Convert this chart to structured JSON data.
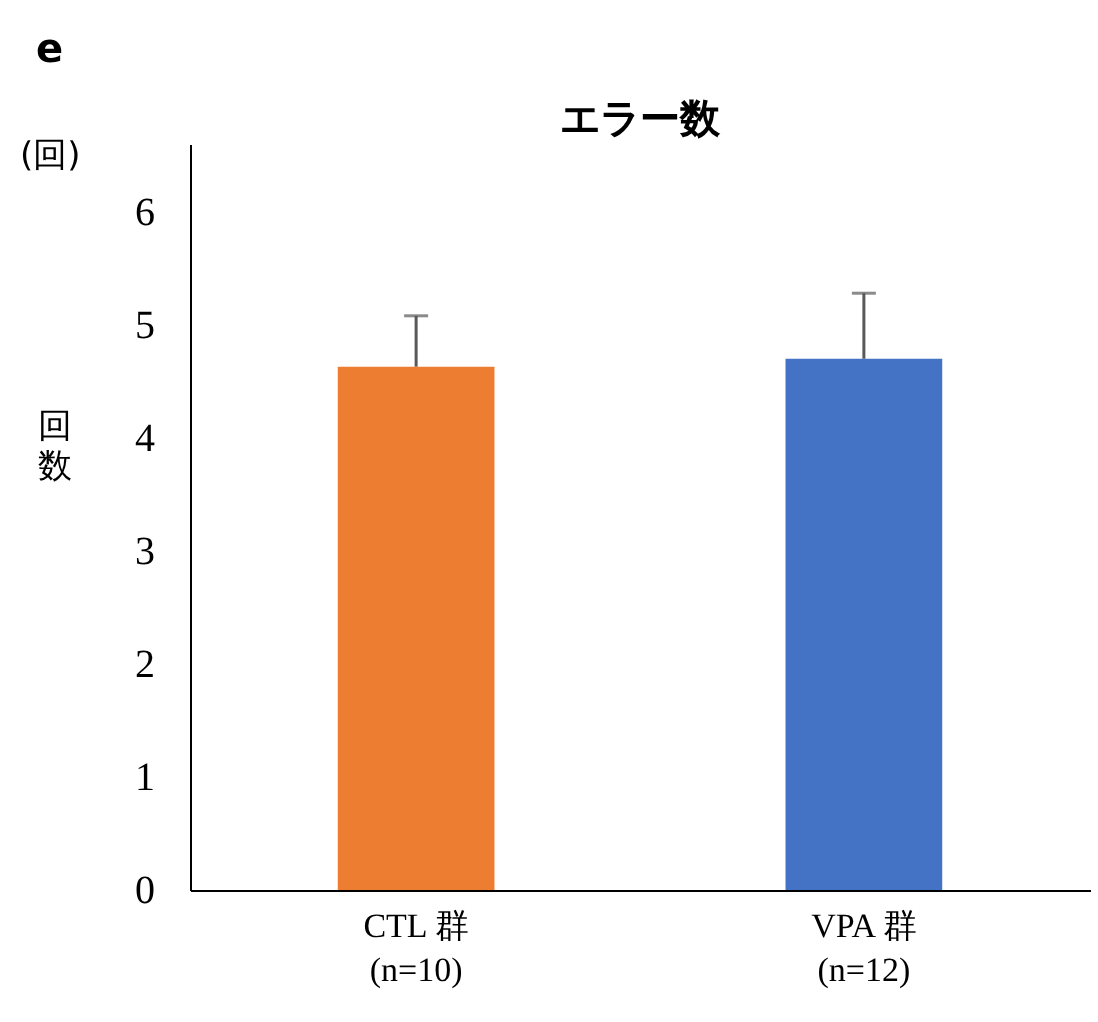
{
  "chart_data": {
    "type": "bar",
    "title": "エラー数",
    "ylabel": "回数",
    "annotations": [
      "e",
      "(回)"
    ],
    "categories": [
      "CTL 群\n(n=10)",
      "VPA 群\n(n=12)"
    ],
    "values": [
      4.63,
      4.7
    ],
    "colors": [
      "#ed7d31",
      "#4472c4"
    ],
    "errors": [
      [
        4.63,
        5.08
      ],
      [
        4.7,
        5.28
      ]
    ],
    "ylim": [
      0,
      6.6
    ],
    "yticks": [
      0,
      1,
      2,
      3,
      4,
      5,
      6
    ],
    "grid": false,
    "legend": false
  }
}
